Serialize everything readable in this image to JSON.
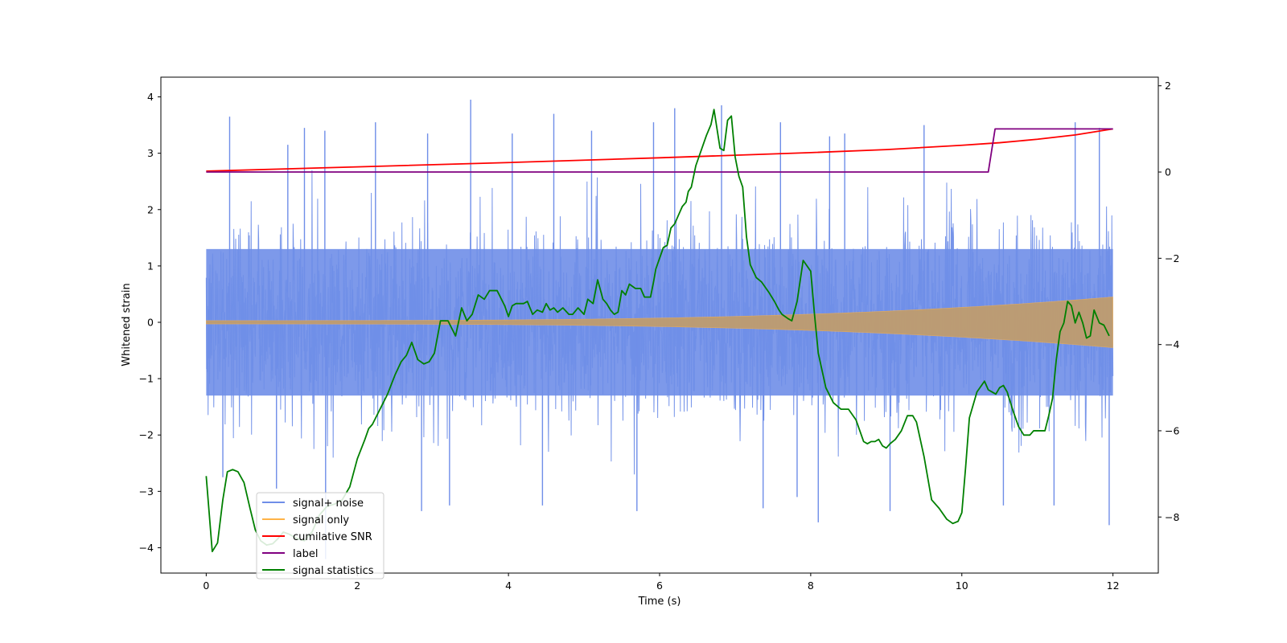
{
  "chart_data": {
    "type": "line",
    "title": "",
    "xlabel": "Time (s)",
    "ylabel": "Whitened strain",
    "y2label": "",
    "xlim": [
      -0.6,
      12.6
    ],
    "ylim": [
      -4.45,
      4.35
    ],
    "y2lim": [
      -9.3,
      2.2
    ],
    "x_ticks": [
      0,
      2,
      4,
      6,
      8,
      10,
      12
    ],
    "x_tick_labels": [
      "0",
      "2",
      "4",
      "6",
      "8",
      "10",
      "12"
    ],
    "y_ticks": [
      -4,
      -3,
      -2,
      -1,
      0,
      1,
      2,
      3,
      4
    ],
    "y_tick_labels": [
      "−4",
      "−3",
      "−2",
      "−1",
      "0",
      "1",
      "2",
      "3",
      "4"
    ],
    "y2_ticks": [
      -8,
      -6,
      -4,
      -2,
      0,
      2
    ],
    "y2_tick_labels": [
      "−8",
      "−6",
      "−4",
      "−2",
      "0",
      "2"
    ],
    "legend_position": "lower-left",
    "series": [
      {
        "name": "signal+ noise",
        "axis": "left",
        "style": "noise band",
        "color": "#6f8ee8",
        "x_range": [
          0,
          12
        ],
        "core_band": [
          -1.3,
          1.3
        ],
        "typical_extremes": [
          -2.6,
          2.6
        ],
        "spikes": [
          {
            "x": 0.31,
            "y": 3.65
          },
          {
            "x": 1.08,
            "y": 3.15
          },
          {
            "x": 1.3,
            "y": 3.45
          },
          {
            "x": 1.57,
            "y": 3.4
          },
          {
            "x": 2.24,
            "y": 3.55
          },
          {
            "x": 2.93,
            "y": 3.35
          },
          {
            "x": 3.5,
            "y": 3.95
          },
          {
            "x": 4.05,
            "y": 3.35
          },
          {
            "x": 4.6,
            "y": 3.7
          },
          {
            "x": 5.1,
            "y": 3.4
          },
          {
            "x": 5.92,
            "y": 3.55
          },
          {
            "x": 6.2,
            "y": 3.8
          },
          {
            "x": 6.82,
            "y": 3.85
          },
          {
            "x": 7.6,
            "y": 3.55
          },
          {
            "x": 8.25,
            "y": 3.3
          },
          {
            "x": 8.45,
            "y": 3.35
          },
          {
            "x": 9.5,
            "y": 3.5
          },
          {
            "x": 11.5,
            "y": 3.55
          },
          {
            "x": 11.82,
            "y": 3.45
          },
          {
            "x": 0.22,
            "y": -2.75
          },
          {
            "x": 0.93,
            "y": -2.95
          },
          {
            "x": 1.58,
            "y": -4.2
          },
          {
            "x": 2.85,
            "y": -3.35
          },
          {
            "x": 3.22,
            "y": -3.25
          },
          {
            "x": 4.45,
            "y": -3.25
          },
          {
            "x": 5.7,
            "y": -3.35
          },
          {
            "x": 7.37,
            "y": -3.3
          },
          {
            "x": 7.82,
            "y": -3.1
          },
          {
            "x": 8.1,
            "y": -3.55
          },
          {
            "x": 9.05,
            "y": -3.35
          },
          {
            "x": 10.55,
            "y": -3.25
          },
          {
            "x": 11.22,
            "y": -3.25
          },
          {
            "x": 11.95,
            "y": -3.6
          }
        ]
      },
      {
        "name": "signal only",
        "axis": "left",
        "style": "chirp envelope",
        "color": "#ffb347",
        "x_range": [
          0,
          12
        ],
        "amplitude_start": 0.03,
        "amplitude_end": 0.45
      },
      {
        "name": "cumilative SNR",
        "axis": "right",
        "color": "#ff0000",
        "x": [
          0,
          2,
          4,
          6,
          8,
          9,
          10,
          10.5,
          11,
          11.5,
          12
        ],
        "values": [
          0.02,
          0.12,
          0.22,
          0.33,
          0.45,
          0.52,
          0.62,
          0.68,
          0.76,
          0.86,
          1.0
        ]
      },
      {
        "name": "label",
        "axis": "right",
        "color": "#800080",
        "x": [
          0,
          10.35,
          10.44,
          12
        ],
        "values": [
          0,
          0,
          1,
          1
        ]
      },
      {
        "name": "signal statistics",
        "axis": "right",
        "color": "#008000",
        "x": [
          0,
          0.08,
          0.15,
          0.22,
          0.28,
          0.35,
          0.42,
          0.5,
          0.58,
          0.65,
          0.72,
          0.8,
          0.88,
          0.95,
          1.02,
          1.1,
          1.2,
          1.3,
          1.4,
          1.5,
          1.6,
          1.7,
          1.8,
          1.9,
          2.0,
          2.1,
          2.15,
          2.2,
          2.3,
          2.4,
          2.5,
          2.58,
          2.65,
          2.72,
          2.8,
          2.88,
          2.95,
          3.02,
          3.1,
          3.2,
          3.3,
          3.38,
          3.45,
          3.52,
          3.6,
          3.68,
          3.75,
          3.85,
          3.95,
          4.0,
          4.05,
          4.1,
          4.15,
          4.2,
          4.25,
          4.32,
          4.38,
          4.45,
          4.5,
          4.55,
          4.6,
          4.65,
          4.72,
          4.8,
          4.85,
          4.92,
          5.0,
          5.05,
          5.12,
          5.18,
          5.25,
          5.3,
          5.35,
          5.4,
          5.45,
          5.5,
          5.55,
          5.6,
          5.68,
          5.75,
          5.8,
          5.88,
          5.92,
          5.95,
          6.0,
          6.05,
          6.1,
          6.15,
          6.2,
          6.25,
          6.3,
          6.35,
          6.38,
          6.42,
          6.48,
          6.52,
          6.58,
          6.62,
          6.68,
          6.72,
          6.8,
          6.85,
          6.9,
          6.95,
          7.0,
          7.05,
          7.1,
          7.15,
          7.2,
          7.28,
          7.35,
          7.45,
          7.52,
          7.58,
          7.62,
          7.66,
          7.7,
          7.75,
          7.82,
          7.9,
          8.0,
          8.05,
          8.1,
          8.2,
          8.3,
          8.4,
          8.5,
          8.6,
          8.65,
          8.7,
          8.75,
          8.8,
          8.85,
          8.9,
          8.95,
          9.0,
          9.05,
          9.12,
          9.2,
          9.28,
          9.35,
          9.4,
          9.45,
          9.5,
          9.55,
          9.6,
          9.7,
          9.8,
          9.88,
          9.95,
          10.0,
          10.05,
          10.1,
          10.2,
          10.3,
          10.35,
          10.4,
          10.45,
          10.5,
          10.55,
          10.6,
          10.68,
          10.75,
          10.82,
          10.9,
          10.95,
          11.02,
          11.1,
          11.15,
          11.2,
          11.25,
          11.3,
          11.35,
          11.4,
          11.45,
          11.5,
          11.55,
          11.6,
          11.65,
          11.7,
          11.75,
          11.82,
          11.88,
          11.95
        ],
        "values": [
          -7.05,
          -8.8,
          -8.6,
          -7.6,
          -6.95,
          -6.9,
          -6.95,
          -7.2,
          -7.8,
          -8.3,
          -8.55,
          -8.65,
          -8.62,
          -8.5,
          -8.35,
          -8.4,
          -8.5,
          -8.55,
          -8.35,
          -7.95,
          -7.75,
          -7.7,
          -7.6,
          -7.3,
          -6.65,
          -6.2,
          -5.95,
          -5.85,
          -5.5,
          -5.15,
          -4.7,
          -4.4,
          -4.25,
          -3.95,
          -4.35,
          -4.45,
          -4.4,
          -4.2,
          -3.45,
          -3.45,
          -3.8,
          -3.15,
          -3.45,
          -3.3,
          -2.85,
          -2.95,
          -2.75,
          -2.75,
          -3.1,
          -3.35,
          -3.1,
          -3.05,
          -3.05,
          -3.05,
          -3.0,
          -3.3,
          -3.2,
          -3.25,
          -3.05,
          -3.2,
          -3.15,
          -3.25,
          -3.15,
          -3.3,
          -3.3,
          -3.15,
          -3.3,
          -2.95,
          -3.05,
          -2.5,
          -2.95,
          -3.05,
          -3.2,
          -3.3,
          -3.25,
          -2.75,
          -2.85,
          -2.6,
          -2.7,
          -2.7,
          -2.9,
          -2.9,
          -2.55,
          -2.25,
          -2.0,
          -1.75,
          -1.7,
          -1.3,
          -1.2,
          -1.0,
          -0.8,
          -0.7,
          -0.45,
          -0.35,
          0.15,
          0.35,
          0.65,
          0.85,
          1.1,
          1.45,
          0.55,
          0.5,
          1.2,
          1.3,
          0.35,
          -0.1,
          -0.35,
          -1.5,
          -2.15,
          -2.45,
          -2.55,
          -2.8,
          -3.0,
          -3.2,
          -3.3,
          -3.35,
          -3.4,
          -3.45,
          -3.0,
          -2.05,
          -2.3,
          -3.3,
          -4.2,
          -5.0,
          -5.35,
          -5.5,
          -5.5,
          -5.75,
          -6.0,
          -6.25,
          -6.3,
          -6.25,
          -6.25,
          -6.2,
          -6.35,
          -6.4,
          -6.3,
          -6.2,
          -6.0,
          -5.65,
          -5.65,
          -5.8,
          -6.2,
          -6.6,
          -7.1,
          -7.6,
          -7.8,
          -8.05,
          -8.15,
          -8.1,
          -7.9,
          -6.85,
          -5.7,
          -5.1,
          -4.85,
          -5.05,
          -5.1,
          -5.15,
          -5.0,
          -4.95,
          -5.1,
          -5.55,
          -5.9,
          -6.1,
          -6.1,
          -6.0,
          -6.0,
          -6.0,
          -5.65,
          -5.25,
          -4.35,
          -3.7,
          -3.5,
          -3.0,
          -3.1,
          -3.5,
          -3.25,
          -3.5,
          -3.85,
          -3.8,
          -3.2,
          -3.5,
          -3.55,
          -3.8
        ]
      }
    ]
  }
}
